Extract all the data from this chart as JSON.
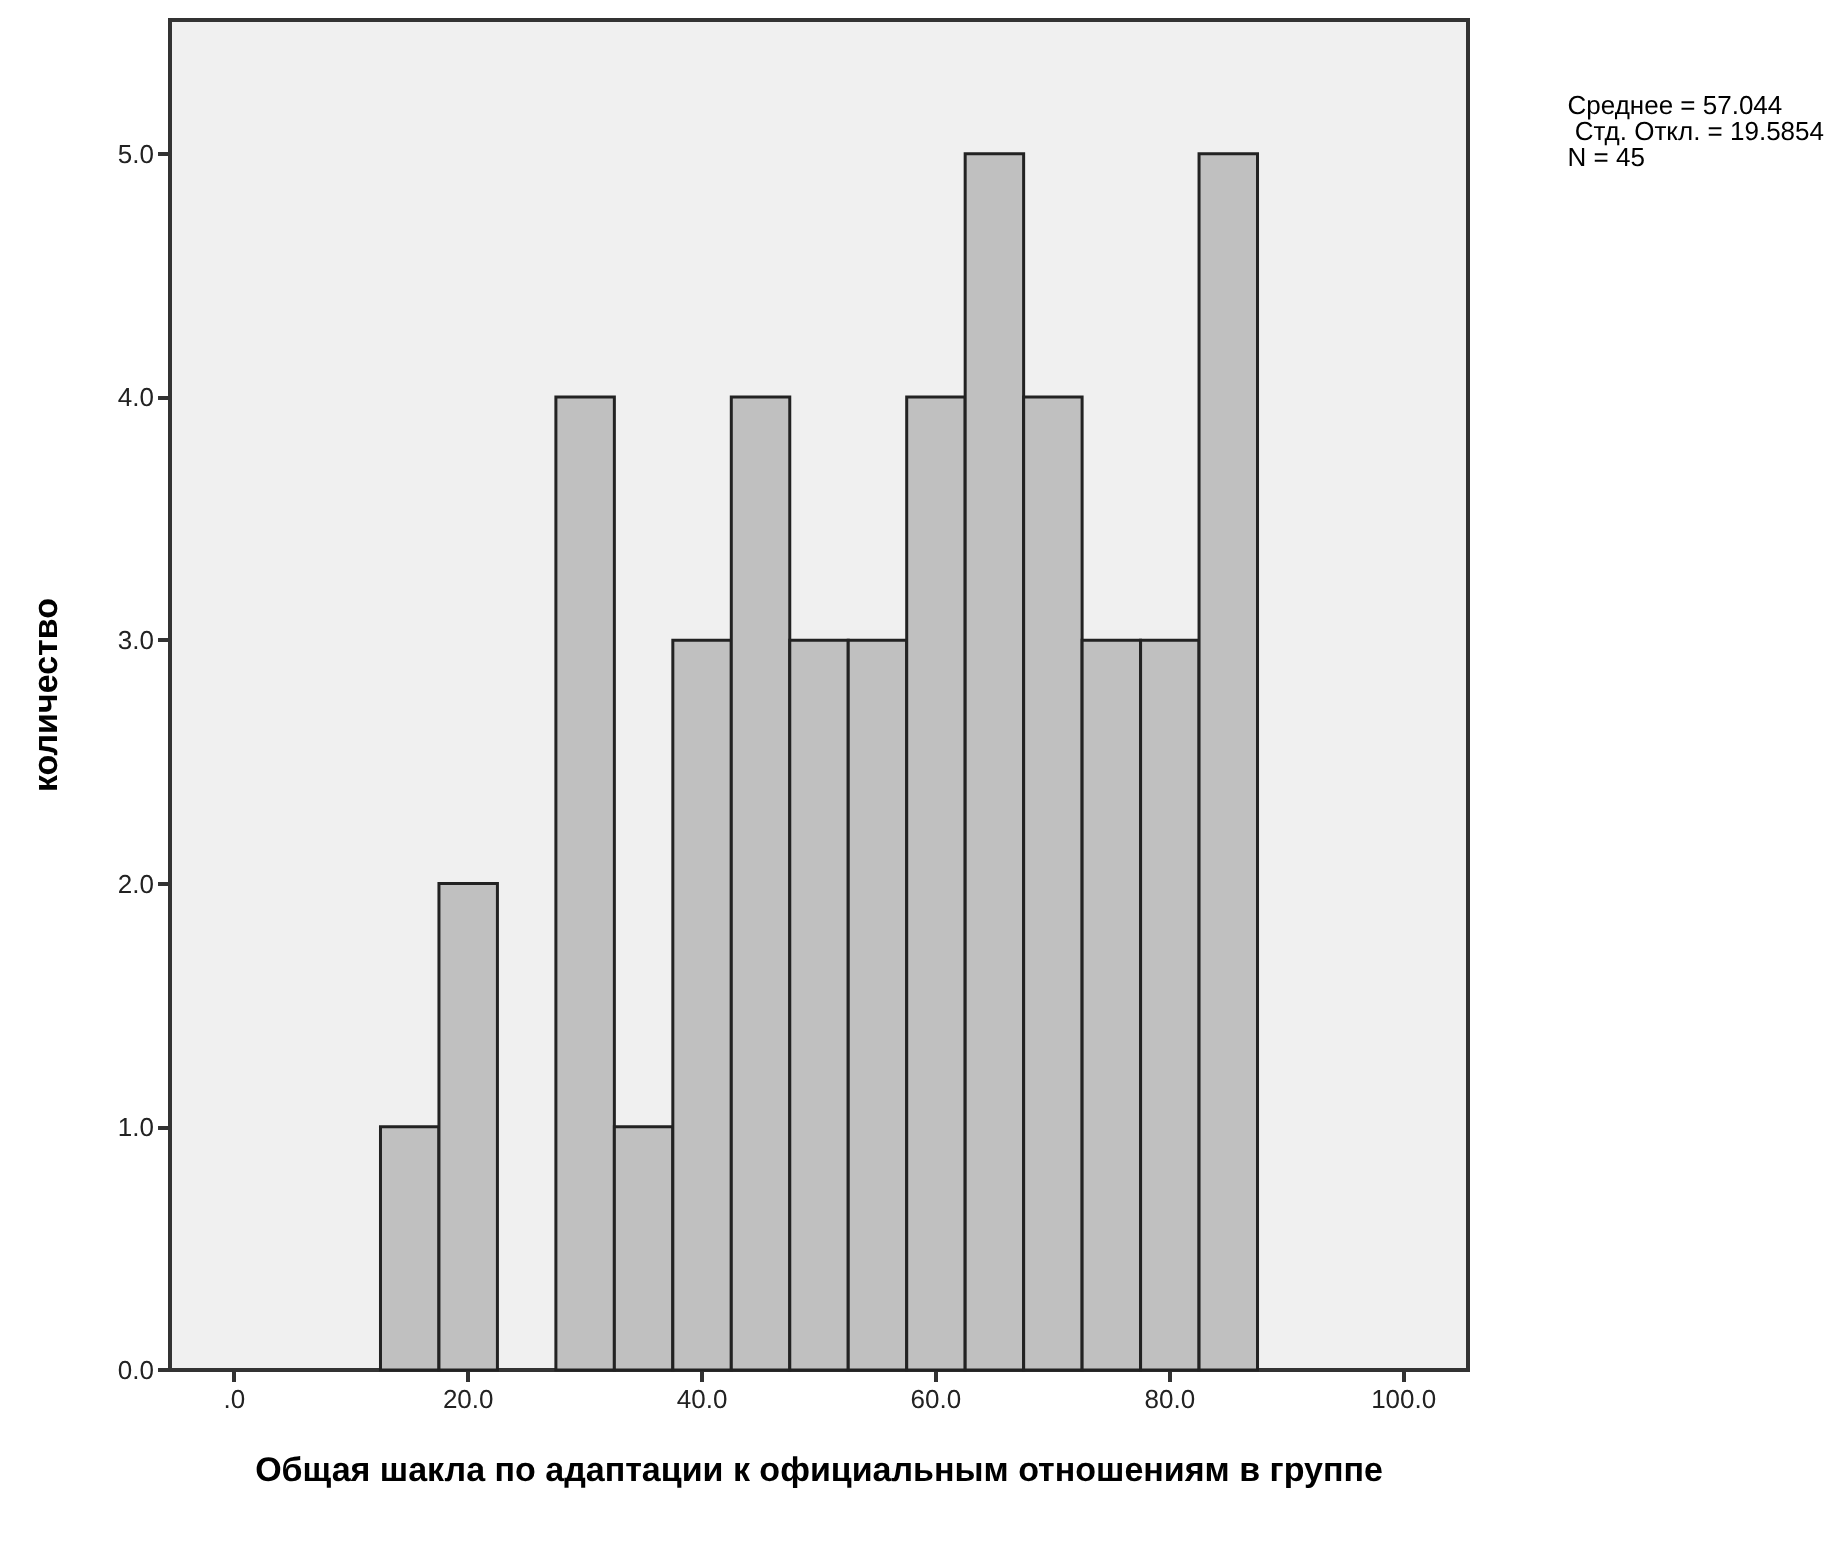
{
  "chart_data": {
    "type": "histogram",
    "xlabel": "Общая шакла по адаптации к официальным отношениям в группе",
    "ylabel": "количество",
    "bins": [
      12.5,
      17.5,
      22.5,
      27.5,
      32.5,
      37.5,
      42.5,
      47.5,
      52.5,
      57.5,
      62.5,
      67.5,
      72.5,
      77.5,
      82.5,
      87.5
    ],
    "values": [
      1,
      2,
      0,
      4,
      1,
      3,
      4,
      3,
      3,
      4,
      5,
      4,
      3,
      3,
      5
    ],
    "color": "#c0c0c0",
    "xlim": [
      -5.5,
      105.5
    ],
    "xticks": [
      {
        "value": 0,
        "label": ".0"
      },
      {
        "value": 20,
        "label": "20.0"
      },
      {
        "value": 40,
        "label": "40.0"
      },
      {
        "value": 60,
        "label": "60.0"
      },
      {
        "value": 80,
        "label": "80.0"
      },
      {
        "value": 100,
        "label": "100.0"
      }
    ],
    "ylim": [
      0,
      5.55
    ],
    "yticks": [
      {
        "value": 0,
        "label": "0.0"
      },
      {
        "value": 1,
        "label": "1.0"
      },
      {
        "value": 2,
        "label": "2.0"
      },
      {
        "value": 3,
        "label": "3.0"
      },
      {
        "value": 4,
        "label": "4.0"
      },
      {
        "value": 5,
        "label": "5.0"
      }
    ],
    "grid": false,
    "annotations": [
      "Среднее = 57.044\n Стд. Откл. = 19.5854\nN = 45"
    ]
  }
}
